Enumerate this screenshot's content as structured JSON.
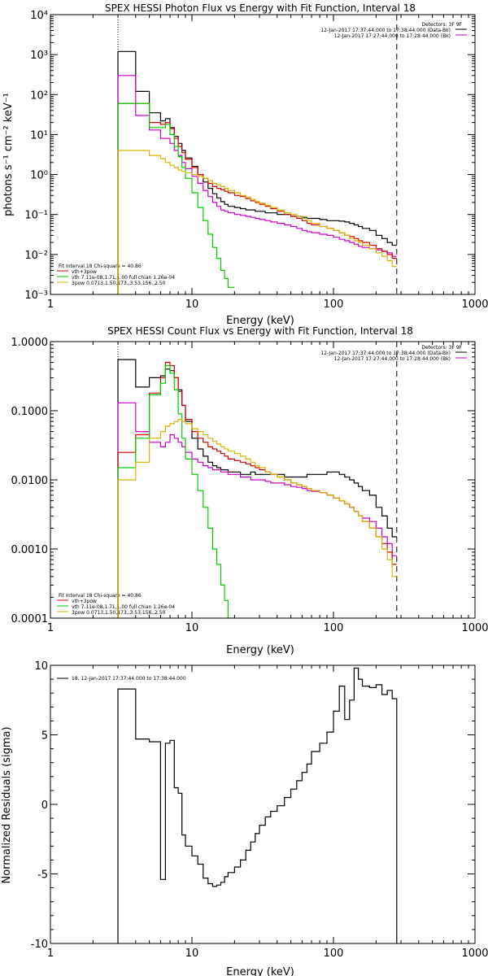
{
  "chart_data": [
    {
      "type": "line",
      "title": "SPEX HESSI Photon Flux vs Energy with Fit Function, Interval 18",
      "xlabel": "Energy (keV)",
      "ylabel": "photons s⁻¹ cm⁻² keV⁻¹",
      "xscale": "log",
      "yscale": "log",
      "xlim": [
        1,
        1000
      ],
      "ylim": [
        0.001,
        10000
      ],
      "x_ticks": [
        1,
        10,
        100,
        1000
      ],
      "x_tick_labels": [
        "1",
        "10",
        "100",
        "1000"
      ],
      "y_ticks": [
        0.001,
        0.01,
        0.1,
        1,
        10,
        100,
        1000,
        10000
      ],
      "y_tick_labels": [
        "10⁻³",
        "10⁻²",
        "10⁻¹",
        "10⁰",
        "10¹",
        "10²",
        "10³",
        "10⁴"
      ],
      "vlines": [
        {
          "x": 3,
          "style": "dotted"
        },
        {
          "x": 280,
          "style": "dashed"
        }
      ],
      "legend_topright": [
        "Detectors: 3F 9F",
        "12-Jan-2017 17:37:44.000 to 17:38:44.000 (Data-Bk)",
        "12-Jan-2017 17:27:44.000 to 17:28:44.000 (Bk)"
      ],
      "legend_bottomleft": [
        "Fit Interval 18   Chi-square = 40.86",
        "vth+3pow",
        "vth 7.11e-08,1.71,1.00  full chian 1.26e-04",
        "3pow 0.0713,1.50,173.,3.53,156.,2.50"
      ],
      "legend_bottomleft_colors": [
        "#000000",
        "#d80000",
        "#00cc00",
        "#d8b400"
      ],
      "legend_topright_colors": [
        "#000000",
        "#000000",
        "#cc00cc"
      ],
      "edges": [
        3,
        4,
        5,
        6,
        6.5,
        7,
        7.5,
        8,
        8.5,
        9,
        10,
        11,
        12,
        13,
        14,
        15,
        16,
        17,
        18,
        20,
        22,
        24,
        26,
        28,
        30,
        33,
        36,
        40,
        45,
        50,
        55,
        60,
        65,
        70,
        80,
        90,
        100,
        110,
        120,
        130,
        140,
        150,
        160,
        180,
        200,
        220,
        240,
        260,
        280
      ],
      "series": [
        {
          "name": "Data-Bk",
          "color": "#000000",
          "values": [
            1200,
            120,
            35,
            22,
            25,
            15,
            9,
            6,
            4,
            2.6,
            1.6,
            1.0,
            0.65,
            0.45,
            0.33,
            0.26,
            0.21,
            0.18,
            0.16,
            0.15,
            0.14,
            0.13,
            0.13,
            0.12,
            0.12,
            0.11,
            0.11,
            0.1,
            0.1,
            0.09,
            0.09,
            0.085,
            0.08,
            0.08,
            0.075,
            0.07,
            0.07,
            0.068,
            0.065,
            0.06,
            0.055,
            0.05,
            0.045,
            0.04,
            0.03,
            0.025,
            0.02,
            0.017
          ]
        },
        {
          "name": "Bk",
          "color": "#cc00cc",
          "values": [
            300,
            30,
            13,
            8,
            8,
            6,
            4,
            3,
            2,
            1.4,
            0.9,
            0.6,
            0.4,
            0.28,
            0.2,
            0.16,
            0.13,
            0.12,
            0.11,
            0.1,
            0.095,
            0.09,
            0.085,
            0.08,
            0.075,
            0.07,
            0.065,
            0.06,
            0.055,
            0.05,
            0.045,
            0.04,
            0.037,
            0.035,
            0.032,
            0.03,
            0.027,
            0.024,
            0.022,
            0.02,
            0.018,
            0.016,
            0.015,
            0.014,
            0.013,
            0.012,
            0.011,
            0.009
          ]
        },
        {
          "name": "vth+3pow",
          "color": "#d80000",
          "values": [
            60,
            60,
            20,
            18,
            20,
            14,
            8,
            5,
            3.5,
            2.4,
            1.5,
            1.0,
            0.8,
            0.6,
            0.5,
            0.45,
            0.42,
            0.38,
            0.35,
            0.3,
            0.28,
            0.25,
            0.22,
            0.2,
            0.18,
            0.16,
            0.14,
            0.12,
            0.1,
            0.09,
            0.08,
            0.07,
            0.06,
            0.055,
            0.05,
            0.045,
            0.04,
            0.035,
            0.03,
            0.028,
            0.025,
            0.022,
            0.02,
            0.017,
            0.014,
            0.012,
            0.01,
            0.008
          ]
        },
        {
          "name": "vth",
          "color": "#00cc00",
          "values": [
            60,
            60,
            15,
            15,
            18,
            10,
            5,
            2.8,
            1.5,
            0.8,
            0.35,
            0.15,
            0.07,
            0.032,
            0.015,
            0.008,
            0.004,
            0.0025,
            0.0015
          ]
        },
        {
          "name": "3pow",
          "color": "#d8b400",
          "values": [
            4,
            4,
            3,
            2.5,
            2,
            1.7,
            1.5,
            1.3,
            1.2,
            1.1,
            1.0,
            0.9,
            0.8,
            0.7,
            0.6,
            0.55,
            0.5,
            0.45,
            0.4,
            0.35,
            0.3,
            0.27,
            0.24,
            0.21,
            0.19,
            0.17,
            0.15,
            0.13,
            0.11,
            0.1,
            0.09,
            0.08,
            0.07,
            0.06,
            0.05,
            0.045,
            0.04,
            0.035,
            0.03,
            0.025,
            0.022,
            0.02,
            0.017,
            0.014,
            0.011,
            0.009,
            0.007,
            0.005
          ]
        }
      ]
    },
    {
      "type": "line",
      "title": "SPEX HESSI Count Flux vs Energy with Fit Function, Interval 18",
      "xlabel": "Energy (keV)",
      "ylabel": "",
      "xscale": "log",
      "yscale": "log",
      "xlim": [
        1,
        1000
      ],
      "ylim": [
        0.0001,
        1
      ],
      "x_ticks": [
        1,
        10,
        100,
        1000
      ],
      "x_tick_labels": [
        "1",
        "10",
        "100",
        "1000"
      ],
      "y_ticks": [
        0.0001,
        0.001,
        0.01,
        0.1,
        1
      ],
      "y_tick_labels": [
        "0.0001",
        "0.0010",
        "0.0100",
        "0.1000",
        "1.0000"
      ],
      "vlines": [
        {
          "x": 3,
          "style": "dotted"
        },
        {
          "x": 280,
          "style": "dashed"
        }
      ],
      "legend_topright": [
        "Detectors: 3F 9F",
        "12-Jan-2017 17:37:44.000 to 17:38:44.000 (Data-Bk)",
        "12-Jan-2017 17:27:44.000 to 17:28:44.000 (Bk)"
      ],
      "legend_bottomleft": [
        "Fit Interval 18   Chi-square = 40.86",
        "vth+3pow",
        "vth 7.11e-08,1.71,1.00  full chian 1.26e-04",
        "3pow 0.0713,1.50,173.,3.53,156.,2.50"
      ],
      "legend_bottomleft_colors": [
        "#000000",
        "#d80000",
        "#00cc00",
        "#d8b400"
      ],
      "legend_topright_colors": [
        "#000000",
        "#000000",
        "#cc00cc"
      ],
      "edges": [
        3,
        4,
        5,
        6,
        6.5,
        7,
        7.5,
        8,
        8.5,
        9,
        10,
        11,
        12,
        13,
        14,
        15,
        16,
        17,
        18,
        20,
        22,
        24,
        26,
        28,
        30,
        33,
        36,
        40,
        45,
        50,
        55,
        60,
        65,
        70,
        80,
        90,
        100,
        110,
        120,
        130,
        140,
        150,
        160,
        180,
        200,
        220,
        240,
        260,
        280
      ],
      "series": [
        {
          "name": "Data-Bk",
          "color": "#000000",
          "values": [
            0.55,
            0.22,
            0.3,
            0.32,
            0.4,
            0.38,
            0.3,
            0.2,
            0.12,
            0.07,
            0.04,
            0.028,
            0.022,
            0.018,
            0.016,
            0.015,
            0.014,
            0.014,
            0.013,
            0.013,
            0.012,
            0.012,
            0.013,
            0.012,
            0.012,
            0.012,
            0.012,
            0.012,
            0.011,
            0.011,
            0.011,
            0.011,
            0.012,
            0.012,
            0.012,
            0.013,
            0.013,
            0.012,
            0.011,
            0.01,
            0.009,
            0.008,
            0.007,
            0.006,
            0.004,
            0.003,
            0.002,
            0.0015
          ]
        },
        {
          "name": "Bk",
          "color": "#cc00cc",
          "values": [
            0.13,
            0.05,
            0.035,
            0.03,
            0.035,
            0.045,
            0.04,
            0.035,
            0.03,
            0.025,
            0.02,
            0.018,
            0.016,
            0.015,
            0.014,
            0.014,
            0.013,
            0.013,
            0.012,
            0.012,
            0.011,
            0.011,
            0.01,
            0.01,
            0.01,
            0.0095,
            0.009,
            0.009,
            0.0085,
            0.008,
            0.0078,
            0.0075,
            0.007,
            0.0068,
            0.0065,
            0.006,
            0.0055,
            0.005,
            0.0045,
            0.004,
            0.0035,
            0.003,
            0.0028,
            0.0025,
            0.002,
            0.0015,
            0.0012,
            0.0008
          ]
        },
        {
          "name": "vth+3pow",
          "color": "#d80000",
          "values": [
            0.025,
            0.045,
            0.18,
            0.3,
            0.5,
            0.45,
            0.3,
            0.19,
            0.12,
            0.075,
            0.05,
            0.04,
            0.035,
            0.03,
            0.028,
            0.026,
            0.024,
            0.022,
            0.02,
            0.019,
            0.018,
            0.017,
            0.016,
            0.015,
            0.014,
            0.013,
            0.012,
            0.011,
            0.01,
            0.009,
            0.0085,
            0.008,
            0.0075,
            0.007,
            0.0065,
            0.006,
            0.0055,
            0.005,
            0.0045,
            0.004,
            0.0035,
            0.003,
            0.0025,
            0.002,
            0.0015,
            0.0012,
            0.0009,
            0.0006
          ]
        },
        {
          "name": "vth",
          "color": "#00cc00",
          "values": [
            0.015,
            0.04,
            0.17,
            0.25,
            0.45,
            0.35,
            0.2,
            0.09,
            0.04,
            0.02,
            0.012,
            0.007,
            0.004,
            0.002,
            0.001,
            0.0006,
            0.0003,
            0.00018,
            0.0001
          ]
        },
        {
          "name": "3pow",
          "color": "#d8b400",
          "values": [
            0.01,
            0.018,
            0.04,
            0.05,
            0.06,
            0.065,
            0.07,
            0.075,
            0.07,
            0.065,
            0.055,
            0.05,
            0.045,
            0.04,
            0.036,
            0.033,
            0.03,
            0.028,
            0.026,
            0.024,
            0.022,
            0.02,
            0.018,
            0.016,
            0.015,
            0.013,
            0.012,
            0.011,
            0.01,
            0.009,
            0.0085,
            0.008,
            0.0075,
            0.007,
            0.0065,
            0.006,
            0.0055,
            0.005,
            0.0045,
            0.004,
            0.0035,
            0.003,
            0.0025,
            0.002,
            0.0015,
            0.001,
            0.0007,
            0.0004
          ]
        }
      ]
    },
    {
      "type": "line",
      "title": "",
      "xlabel": "Energy (keV)",
      "ylabel": "Normalized Residuals (sigma)",
      "xscale": "log",
      "yscale": "linear",
      "xlim": [
        1,
        1000
      ],
      "ylim": [
        -10,
        10
      ],
      "x_ticks": [
        1,
        10,
        100,
        1000
      ],
      "x_tick_labels": [
        "1",
        "10",
        "100",
        "1000"
      ],
      "y_ticks": [
        -10,
        -5,
        0,
        5,
        10
      ],
      "y_tick_labels": [
        "-10",
        "-5",
        "0",
        "5",
        "10"
      ],
      "legend_topleft": [
        "18, 12-Jan-2017 17:37:44.000 to 17:38:44.000"
      ],
      "edges": [
        3,
        4,
        5,
        6,
        6.5,
        7,
        7.5,
        8,
        8.5,
        9,
        10,
        11,
        12,
        13,
        14,
        15,
        16,
        17,
        18,
        20,
        22,
        24,
        26,
        28,
        30,
        33,
        36,
        40,
        45,
        50,
        55,
        60,
        65,
        70,
        80,
        90,
        100,
        110,
        120,
        130,
        140,
        150,
        160,
        180,
        200,
        220,
        240,
        260,
        280
      ],
      "series": [
        {
          "name": "",
          "color": "#000000",
          "values": [
            8.3,
            4.7,
            4.5,
            -5.4,
            4.4,
            4.6,
            1.2,
            0.8,
            -2.2,
            -3.0,
            -3.7,
            -4.3,
            -5.3,
            -5.7,
            -5.9,
            -5.8,
            -5.6,
            -5.2,
            -4.9,
            -4.5,
            -4.0,
            -3.3,
            -2.7,
            -2.1,
            -1.5,
            -0.9,
            -0.5,
            -0.1,
            0.5,
            1.1,
            1.7,
            2.3,
            2.9,
            3.8,
            4.4,
            5.2,
            6.7,
            8.5,
            6.1,
            7.5,
            9.8,
            9.0,
            8.5,
            8.4,
            8.6,
            7.9,
            8.2,
            7.6
          ]
        }
      ]
    }
  ]
}
